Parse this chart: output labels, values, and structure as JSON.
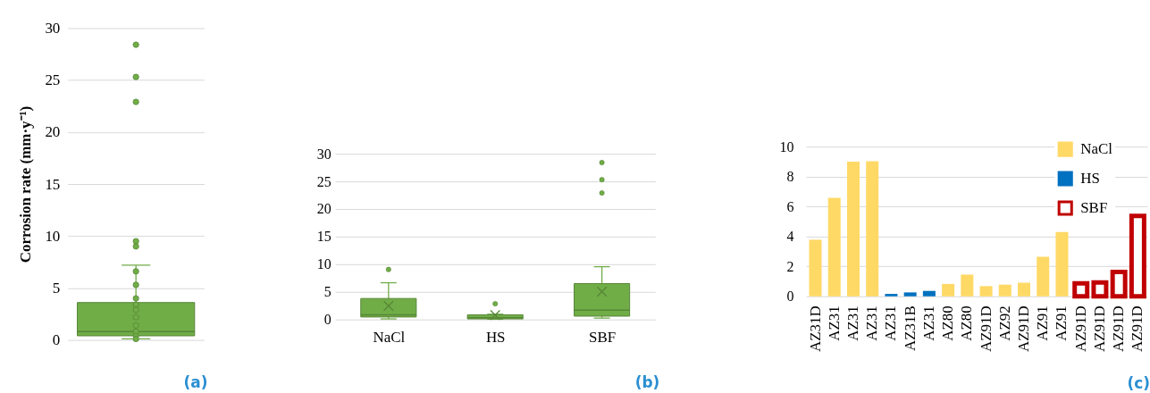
{
  "chart_data": [
    {
      "type": "box",
      "categories": [
        null
      ],
      "ylabel": "Corrosion rate (mm·y⁻¹)",
      "ylim": [
        0,
        30
      ],
      "yticks": [
        0,
        5,
        10,
        15,
        20,
        25,
        30
      ],
      "grid": "y",
      "tick_labels": "y",
      "annotations": [
        "(a)"
      ],
      "series": [
        {
          "color": "#70ad47",
          "boxes": [
            {
              "low": 0.1,
              "q1": 0.4,
              "median": 0.8,
              "q3": 3.6,
              "high": 7.2
            }
          ]
        },
        {
          "type": "scatter",
          "color": "#70ad47",
          "marker": "circle",
          "x": [
            null,
            null,
            null,
            null,
            null,
            null,
            null,
            null,
            null,
            null,
            null,
            null,
            null,
            null,
            null
          ],
          "values": [
            28.4,
            25.3,
            22.9,
            9.5,
            9.0,
            6.6,
            5.3,
            4.0,
            3.4,
            2.9,
            2.2,
            1.4,
            0.8,
            0.4,
            0.1
          ]
        }
      ]
    },
    {
      "type": "box",
      "categories": [
        "NaCl",
        "HS",
        "SBF"
      ],
      "ylim": [
        0,
        30
      ],
      "yticks": [
        0,
        5,
        10,
        15,
        20,
        25,
        30
      ],
      "grid": "y",
      "annotations": [
        "(b)"
      ],
      "series": [
        {
          "color": "#70ad47",
          "boxes": [
            {
              "low": 0.1,
              "q1": 0.45,
              "median": 0.85,
              "q3": 3.8,
              "high": 6.65,
              "mean": 2.45,
              "outliers": [
                9.05
              ]
            },
            {
              "low": 0.05,
              "q1": 0.1,
              "median": 0.3,
              "q3": 0.85,
              "high": 0.95,
              "mean": 0.8,
              "outliers": [
                2.85
              ]
            },
            {
              "low": 0.25,
              "q1": 0.6,
              "median": 1.7,
              "q3": 6.5,
              "high": 9.55,
              "mean": 5.05,
              "outliers": [
                22.9,
                25.3,
                28.4
              ]
            }
          ]
        }
      ]
    },
    {
      "type": "bar",
      "categories": [
        "AZ31D",
        "AZ31",
        "AZ31",
        "AZ31",
        "AZ31",
        "AZ31B",
        "AZ31",
        "AZ80",
        "AZ80",
        "AZ91D",
        "AZ92",
        "AZ91D",
        "AZ91",
        "AZ91",
        "AZ91D",
        "AZ91D",
        "AZ91D",
        "AZ91D"
      ],
      "ylim": [
        0,
        10
      ],
      "yticks": [
        0,
        2,
        4,
        6,
        8,
        10
      ],
      "grid": "y",
      "legend": "top right",
      "annotations": [
        "(c)"
      ],
      "series": [
        {
          "name": "NaCl",
          "color": "#ffd966",
          "values": [
            3.78,
            6.58,
            8.99,
            9.03,
            null,
            null,
            null,
            0.83,
            1.45,
            0.68,
            0.78,
            0.91,
            2.64,
            4.29,
            null,
            null,
            null,
            null
          ]
        },
        {
          "name": "HS",
          "color": "#0070c0",
          "values": [
            null,
            null,
            null,
            null,
            0.16,
            0.26,
            0.36,
            null,
            null,
            null,
            null,
            null,
            null,
            null,
            null,
            null,
            null,
            null
          ]
        },
        {
          "name": "SBF",
          "color": "#c00000",
          "line_style": "solid",
          "values": [
            null,
            null,
            null,
            null,
            null,
            null,
            null,
            null,
            null,
            null,
            null,
            null,
            null,
            null,
            0.86,
            0.92,
            1.62,
            5.37
          ]
        }
      ]
    }
  ]
}
